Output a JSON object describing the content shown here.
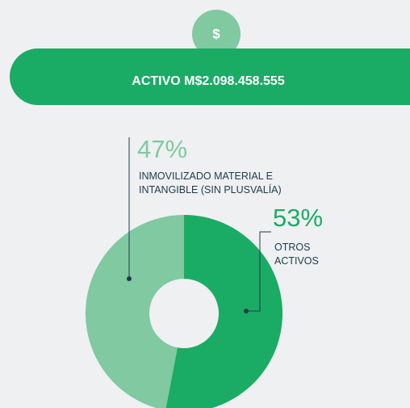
{
  "chart_data": {
    "type": "pie",
    "icon": "$",
    "title": "ACTIVO M$2.098.458.555",
    "categories": [
      "INMOVILIZADO MATERIAL E INTANGIBLE (SIN PLUSVALÍA)",
      "OTROS ACTIVOS"
    ],
    "values": [
      47,
      53
    ],
    "value_labels": [
      "47%",
      "53%"
    ],
    "colors": [
      "#80c9a1",
      "#1aab65"
    ],
    "donut": true
  }
}
